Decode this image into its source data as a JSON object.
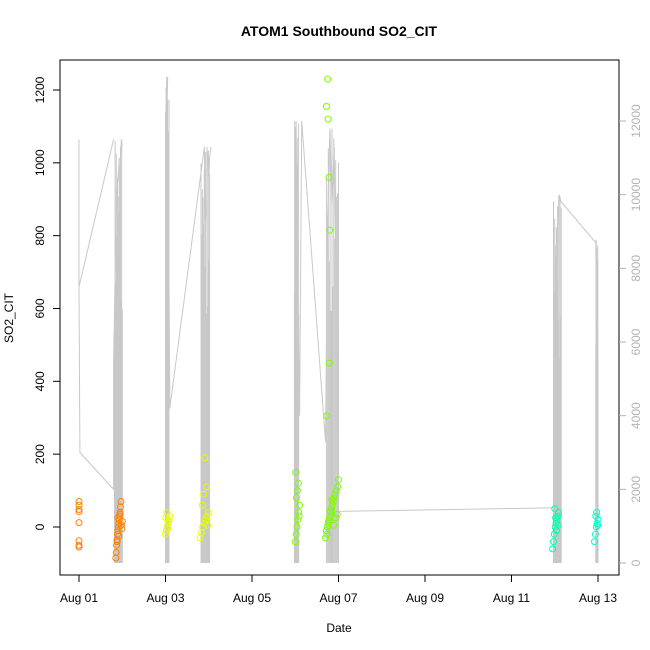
{
  "chart_data": {
    "type": "scatter",
    "title": "ATOM1 Southbound SO2_CIT",
    "xlabel": "Date",
    "ylabel": "SO2_CIT",
    "x_ticks": [
      "Aug 01",
      "Aug 03",
      "Aug 05",
      "Aug 07",
      "Aug 09",
      "Aug 11",
      "Aug 13"
    ],
    "y_ticks": [
      0,
      200,
      400,
      600,
      800,
      1000,
      1200
    ],
    "y2_ticks": [
      0,
      2000,
      4000,
      6000,
      8000,
      10000,
      12000
    ],
    "xlim_days": [
      0.7,
      12.55
    ],
    "ylim": [
      -130,
      1285
    ],
    "y2lim": [
      -280,
      12900
    ],
    "grid": false,
    "legend": "none",
    "colors": {
      "line": "#c8c8c8",
      "axis": "#000000",
      "right_axis": "#b3b3b3",
      "point_groups": [
        "#ff8c00",
        "#ffa500",
        "#e6ff00",
        "#b6ff00",
        "#7cfc00",
        "#66ff33",
        "#00ffb0",
        "#00ffcc"
      ]
    },
    "point_groups": [
      {
        "color": "#ff8000",
        "x": [
          1.0,
          1.0,
          1.0,
          1.0,
          1.0,
          1.0,
          1.0,
          1.0
        ],
        "y": [
          70,
          60,
          48,
          42,
          12,
          -38,
          -50,
          -55
        ]
      },
      {
        "color": "#ff8000",
        "x": [
          1.85,
          1.86,
          1.87,
          1.88,
          1.89,
          1.9,
          1.91,
          1.92,
          1.93,
          1.94,
          1.95,
          1.96,
          1.97,
          1.98,
          1.99,
          2.0,
          1.88,
          1.9,
          1.92,
          1.95
        ],
        "y": [
          -85,
          -70,
          -50,
          -35,
          -20,
          -10,
          0,
          10,
          20,
          30,
          40,
          55,
          70,
          5,
          -5,
          15,
          -40,
          25,
          -25,
          35
        ]
      },
      {
        "color": "#e6ff00",
        "x": [
          3.0,
          3.02,
          3.04,
          3.06,
          3.08,
          3.1,
          3.03,
          3.05,
          3.07,
          3.01
        ],
        "y": [
          -20,
          -10,
          0,
          10,
          20,
          30,
          40,
          -5,
          15,
          25
        ]
      },
      {
        "color": "#e6ff00",
        "x": [
          3.8,
          3.83,
          3.86,
          3.9,
          3.93,
          3.96,
          3.99,
          3.85,
          3.88,
          3.95,
          3.91,
          3.97
        ],
        "y": [
          -30,
          -15,
          0,
          10,
          20,
          30,
          40,
          60,
          90,
          110,
          190,
          5
        ]
      },
      {
        "color": "#7cfc00",
        "x": [
          6.0,
          6.02,
          6.04,
          6.06,
          6.08,
          6.1,
          6.03,
          6.05,
          6.07,
          6.01,
          6.09
        ],
        "y": [
          -40,
          -20,
          0,
          20,
          40,
          60,
          80,
          100,
          120,
          150,
          30
        ]
      },
      {
        "color": "#7cfc00",
        "x": [
          6.7,
          6.72,
          6.74,
          6.76,
          6.78,
          6.8,
          6.82,
          6.84,
          6.86,
          6.88,
          6.9,
          6.92,
          6.95,
          6.98,
          7.0,
          6.73,
          6.77,
          6.81,
          6.85,
          6.89,
          6.93,
          6.97
        ],
        "y": [
          -30,
          -10,
          0,
          10,
          20,
          30,
          40,
          50,
          60,
          70,
          80,
          90,
          100,
          110,
          130,
          -20,
          15,
          45,
          75,
          5,
          25,
          35
        ]
      },
      {
        "color": "#7cfc00",
        "x": [
          6.72,
          6.75,
          6.76,
          6.78,
          6.8,
          6.79
        ],
        "y": [
          1155,
          1230,
          1120,
          960,
          815,
          450
        ]
      },
      {
        "color": "#7cfc00",
        "x": [
          6.73
        ],
        "y": [
          305
        ]
      },
      {
        "color": "#00ffb0",
        "x": [
          11.95,
          11.97,
          11.99,
          12.01,
          12.03,
          12.05,
          12.07,
          12.09,
          12.0,
          12.04,
          12.08,
          12.02
        ],
        "y": [
          -60,
          -40,
          -20,
          0,
          10,
          20,
          30,
          40,
          50,
          -10,
          5,
          25
        ]
      },
      {
        "color": "#00ffcc",
        "x": [
          12.92,
          12.94,
          12.96,
          12.98,
          13.0,
          12.95,
          12.97,
          12.99
        ],
        "y": [
          -40,
          -20,
          0,
          10,
          20,
          30,
          40,
          5
        ]
      }
    ],
    "line_series": {
      "name": "",
      "note_axis": "right",
      "segments": [
        {
          "x": [
            1.0,
            1.0,
            1.02,
            1.8,
            1.8,
            1.87,
            1.9,
            1.93,
            1.95,
            1.96,
            1.98,
            2.0
          ],
          "y2": [
            11500,
            7500,
            3000,
            2000,
            5500,
            10000,
            10400,
            11000,
            4500,
            11000,
            11500,
            11300
          ]
        },
        {
          "x": [
            1.0,
            1.0,
            1.8
          ],
          "y2": [
            11500,
            7500,
            11500
          ]
        },
        {
          "x": [
            3.0,
            3.01,
            3.05,
            3.02,
            3.06,
            3.1,
            3.9,
            3.92,
            3.95,
            3.97,
            3.99,
            4.0,
            4.02,
            4.05
          ],
          "y2": [
            0,
            12200,
            13200,
            11800,
            11500,
            4200,
            11300,
            9300,
            9600,
            11000,
            11200,
            10500,
            11000,
            11300
          ]
        },
        {
          "x": [
            6.0,
            6.02,
            6.05,
            6.1,
            6.15,
            6.7,
            6.75,
            6.8,
            6.85,
            6.9,
            6.95,
            7.0
          ],
          "y2": [
            1500,
            12000,
            8000,
            4000,
            12000,
            3300,
            9500,
            11800,
            9700,
            11300,
            7400,
            1000
          ]
        },
        {
          "x": [
            7.0,
            12.0,
            12.05,
            12.1,
            12.15,
            12.95,
            13.0
          ],
          "y2": [
            1400,
            1500,
            8800,
            10000,
            9800,
            8700,
            1200
          ]
        }
      ]
    }
  }
}
